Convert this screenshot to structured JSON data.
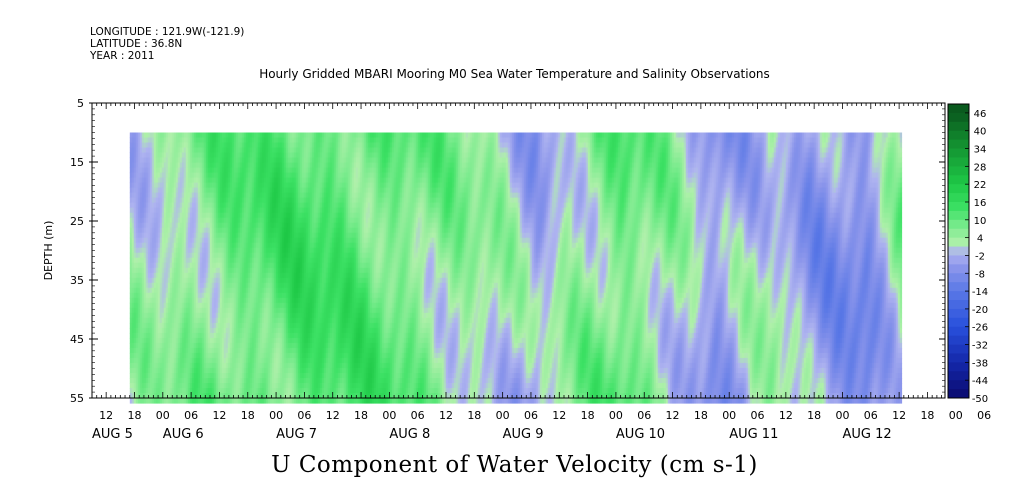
{
  "header": {
    "longitude": "LONGITUDE : 121.9W(-121.9)",
    "latitude": "LATITUDE : 36.8N",
    "year": "YEAR : 2011",
    "title": "Hourly Gridded MBARI Mooring M0 Sea Water Temperature and Salinity Observations"
  },
  "chart_data": {
    "type": "heatmap",
    "title": "U Component of Water Velocity (cm s-1)",
    "ylabel": "DEPTH (m)",
    "ylim": [
      55,
      5
    ],
    "y_ticks": [
      "5",
      "15",
      "25",
      "35",
      "45",
      "55"
    ],
    "x_hour_ticks": [
      "12",
      "18",
      "00",
      "06",
      "12",
      "18",
      "00",
      "06",
      "12",
      "18",
      "00",
      "06",
      "12",
      "18",
      "00",
      "06",
      "12",
      "18",
      "00",
      "06",
      "12",
      "18",
      "00",
      "06",
      "12",
      "18",
      "00",
      "06",
      "12",
      "18",
      "00",
      "06"
    ],
    "x_day_labels": [
      "AUG  5",
      "AUG  6",
      "AUG  7",
      "AUG  8",
      "AUG  9",
      "AUG 10",
      "AUG 11",
      "AUG 12"
    ],
    "colorbar_ticks": [
      "46",
      "40",
      "34",
      "28",
      "22",
      "16",
      "10",
      "4",
      "-2",
      "-8",
      "-14",
      "-20",
      "-26",
      "-32",
      "-38",
      "-44",
      "-50"
    ],
    "data_start": "AUG 5 17:00",
    "data_end": "AUG 12 12:00",
    "depth_range": [
      10,
      55
    ],
    "units": "cm s-1",
    "value_range": [
      -50,
      49
    ]
  },
  "colors": {
    "positive_light": "#a8f0a0",
    "positive": "#30e060",
    "positive_strong": "#10dd40",
    "negative_light": "#a8a8f0",
    "negative": "#7080e8",
    "negative_strong": "#3050e0"
  }
}
